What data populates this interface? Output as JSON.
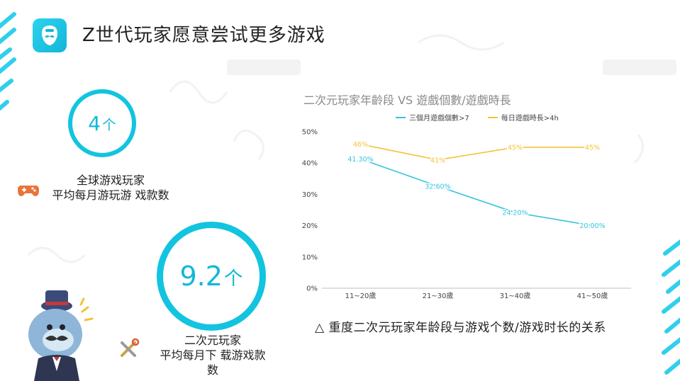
{
  "header": {
    "title": "Z世代玩家愿意尝试更多游戏"
  },
  "stats": [
    {
      "value": "4",
      "unit": "个",
      "label_lines": [
        "全球游戏玩家",
        "平均每月游玩游 戏款数"
      ]
    },
    {
      "value": "9.2",
      "unit": "个",
      "label_lines": [
        "二次元玩家",
        "平均每月下 载游戏款",
        "数"
      ]
    }
  ],
  "caption": "△ 重度二次元玩家年龄段与游戏个数/游戏时长的关系",
  "colors": {
    "accent": "#12c4e0",
    "series1": "#36c4dd",
    "series2": "#f4c23a"
  },
  "icons": [
    "app-logo-icon",
    "gamepad-icon",
    "tools-icon",
    "mascot-icon"
  ],
  "chart_data": {
    "type": "line",
    "title": "二次元玩家年齡段 VS 遊戲個數/遊戲時長",
    "categories": [
      "11~20歲",
      "21~30歲",
      "31~40歲",
      "41~50歲"
    ],
    "series": [
      {
        "name": "三個月遊戲個數>7",
        "values": [
          41.3,
          32.6,
          24.2,
          20.0
        ],
        "labels": [
          "41.30%",
          "32.60%",
          "24.20%",
          "20.00%"
        ],
        "color": "#36c4dd"
      },
      {
        "name": "每日遊戲時長>4h",
        "values": [
          46,
          41,
          45,
          45
        ],
        "labels": [
          "46%",
          "41%",
          "45%",
          "45%"
        ],
        "color": "#f4c23a"
      }
    ],
    "ylim": [
      0,
      50
    ],
    "yticks": [
      "0%",
      "10%",
      "20%",
      "30%",
      "40%",
      "50%"
    ],
    "grid": false,
    "legend": "top"
  }
}
